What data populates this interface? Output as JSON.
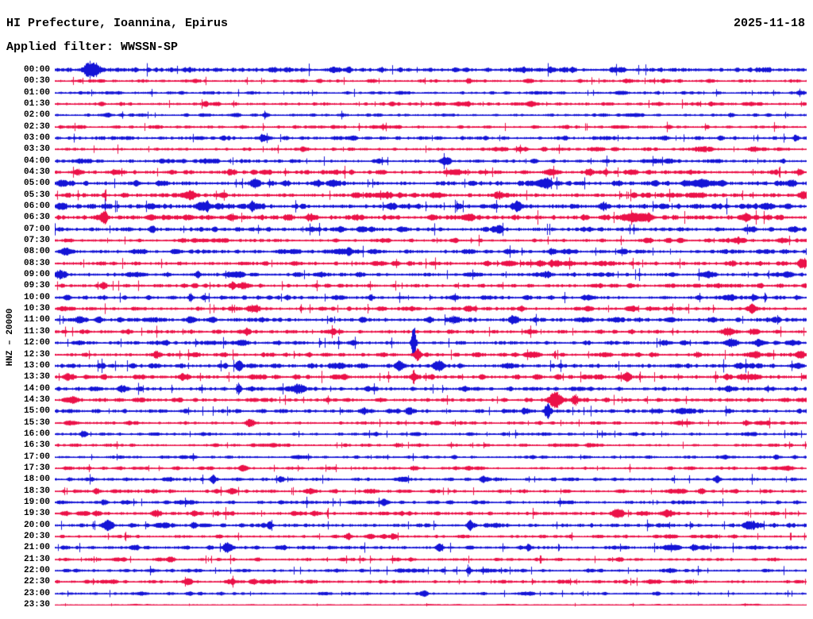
{
  "header": {
    "title": "HI Prefecture, Ioannina, Epirus",
    "date": "2025-11-18",
    "filter_line": "Applied filter: WWSSN-SP"
  },
  "y_axis_label": "HNZ – 20000",
  "colors": {
    "background": "#FFFFFF",
    "text": "#000000",
    "trace_even": "#1414D6",
    "trace_odd": "#EB1148"
  },
  "chart_data": {
    "type": "line",
    "variant": "helicorder-day-plot",
    "title": "HI Prefecture, Ioannina, Epirus",
    "date": "2025-11-18",
    "filter": "WWSSN-SP",
    "channel_scale_label": "HNZ – 20000",
    "minutes_per_row": 30,
    "x_range_minutes": [
      0,
      30
    ],
    "legend": "rows alternate blue (on the hour) and red (on the half hour)",
    "trace_colors_alternate": [
      "#1414D6",
      "#EB1148"
    ],
    "events_format": "[x_fraction_of_row, peak_amplitude_px, half_width_px]",
    "rows": [
      {
        "time": "00:00",
        "color": "blue",
        "noise_level": 1.7,
        "events": [
          [
            0.049,
            11,
            7
          ],
          [
            0.29,
            2.5,
            4
          ],
          [
            0.62,
            2,
            3
          ]
        ]
      },
      {
        "time": "00:30",
        "color": "red",
        "noise_level": 1.1,
        "events": [
          [
            0.55,
            2.5,
            3
          ],
          [
            0.87,
            2,
            3
          ]
        ]
      },
      {
        "time": "01:00",
        "color": "blue",
        "noise_level": 1.0,
        "events": [
          [
            0.75,
            1.5,
            6
          ]
        ]
      },
      {
        "time": "01:30",
        "color": "red",
        "noise_level": 1.2,
        "events": [
          [
            0.2,
            1.8,
            4
          ]
        ]
      },
      {
        "time": "02:00",
        "color": "blue",
        "noise_level": 1.0,
        "events": [
          [
            0.28,
            3.2,
            3
          ],
          [
            0.9,
            1.8,
            3
          ]
        ]
      },
      {
        "time": "02:30",
        "color": "red",
        "noise_level": 1.1,
        "events": [
          [
            0.25,
            1.8,
            3
          ],
          [
            0.68,
            1.8,
            3
          ]
        ]
      },
      {
        "time": "03:00",
        "color": "blue",
        "noise_level": 1.3,
        "events": [
          [
            0.275,
            3.2,
            3
          ],
          [
            0.81,
            2.8,
            4
          ],
          [
            0.985,
            2.8,
            3
          ]
        ]
      },
      {
        "time": "03:30",
        "color": "red",
        "noise_level": 1.2,
        "events": [
          [
            0.33,
            2.8,
            3
          ],
          [
            0.86,
            3.2,
            8
          ],
          [
            0.93,
            2.8,
            5
          ]
        ]
      },
      {
        "time": "04:00",
        "color": "blue",
        "noise_level": 1.3,
        "events": [
          [
            0.2,
            2.2,
            3
          ],
          [
            0.52,
            4.2,
            4
          ]
        ]
      },
      {
        "time": "04:30",
        "color": "red",
        "noise_level": 1.5,
        "events": [
          [
            0.03,
            3.2,
            4
          ],
          [
            0.08,
            3.2,
            4
          ],
          [
            0.235,
            2.8,
            3
          ],
          [
            0.66,
            3.8,
            6
          ],
          [
            0.71,
            3.2,
            4
          ],
          [
            0.99,
            3.8,
            3
          ]
        ]
      },
      {
        "time": "05:00",
        "color": "blue",
        "noise_level": 1.7,
        "events": [
          [
            0.01,
            3.8,
            5
          ],
          [
            0.265,
            4.2,
            4
          ],
          [
            0.35,
            3.2,
            3
          ],
          [
            0.655,
            3.8,
            4
          ],
          [
            0.98,
            3.8,
            4
          ]
        ]
      },
      {
        "time": "05:30",
        "color": "red",
        "noise_level": 1.6,
        "events": [
          [
            0.18,
            4.2,
            4
          ],
          [
            0.445,
            3.2,
            3
          ],
          [
            0.59,
            3.8,
            5
          ],
          [
            0.77,
            2.8,
            3
          ],
          [
            0.995,
            4.5,
            4
          ]
        ]
      },
      {
        "time": "06:00",
        "color": "blue",
        "noise_level": 1.9,
        "events": [
          [
            0.007,
            3.8,
            4
          ],
          [
            0.2,
            5,
            6
          ],
          [
            0.265,
            4.2,
            4
          ],
          [
            0.615,
            5,
            5
          ],
          [
            0.73,
            4.2,
            4
          ],
          [
            0.975,
            3.2,
            3
          ]
        ]
      },
      {
        "time": "06:30",
        "color": "red",
        "noise_level": 1.8,
        "events": [
          [
            0.065,
            5.5,
            3
          ],
          [
            0.235,
            3.8,
            4
          ],
          [
            0.34,
            4.2,
            4
          ],
          [
            0.76,
            4.6,
            7
          ],
          [
            0.79,
            4.2,
            4
          ],
          [
            0.92,
            3.8,
            4
          ]
        ]
      },
      {
        "time": "07:00",
        "color": "blue",
        "noise_level": 1.6,
        "events": [
          [
            0.13,
            2.8,
            3
          ],
          [
            0.59,
            4.2,
            4
          ],
          [
            0.985,
            2.8,
            3
          ]
        ]
      },
      {
        "time": "07:30",
        "color": "red",
        "noise_level": 1.3,
        "events": [
          [
            0.815,
            3.2,
            3
          ],
          [
            0.91,
            3.2,
            3
          ]
        ]
      },
      {
        "time": "08:00",
        "color": "blue",
        "noise_level": 1.4,
        "events": [
          [
            0.017,
            3.8,
            4
          ],
          [
            0.39,
            3.2,
            3
          ],
          [
            0.66,
            2.8,
            3
          ]
        ]
      },
      {
        "time": "08:30",
        "color": "red",
        "noise_level": 1.5,
        "events": [
          [
            0.665,
            3.8,
            5
          ],
          [
            0.9,
            2.8,
            3
          ],
          [
            0.995,
            5.5,
            5
          ]
        ]
      },
      {
        "time": "09:00",
        "color": "blue",
        "noise_level": 1.5,
        "events": [
          [
            0.007,
            4.6,
            5
          ],
          [
            0.19,
            2.8,
            3
          ],
          [
            0.655,
            3.2,
            4
          ]
        ]
      },
      {
        "time": "09:30",
        "color": "red",
        "noise_level": 1.4,
        "events": [
          [
            0.065,
            3.2,
            3
          ],
          [
            0.235,
            3.8,
            3
          ],
          [
            0.25,
            4.2,
            5
          ]
        ]
      },
      {
        "time": "10:00",
        "color": "blue",
        "noise_level": 1.4,
        "events": [
          [
            0.18,
            5.5,
            2
          ],
          [
            0.42,
            3.2,
            3
          ],
          [
            0.93,
            3.2,
            3
          ]
        ]
      },
      {
        "time": "10:30",
        "color": "red",
        "noise_level": 1.4,
        "events": [
          [
            0.265,
            5,
            5
          ],
          [
            0.62,
            2.8,
            3
          ],
          [
            0.925,
            3.8,
            4
          ]
        ]
      },
      {
        "time": "11:00",
        "color": "blue",
        "noise_level": 1.6,
        "events": [
          [
            0.033,
            3.8,
            4
          ],
          [
            0.18,
            4.2,
            4
          ],
          [
            0.53,
            4.2,
            5
          ],
          [
            0.61,
            3.8,
            4
          ],
          [
            0.875,
            3.2,
            3
          ]
        ]
      },
      {
        "time": "11:30",
        "color": "red",
        "noise_level": 1.4,
        "events": [
          [
            0.255,
            3.8,
            3
          ],
          [
            0.37,
            3.2,
            3
          ],
          [
            0.895,
            4.6,
            6
          ],
          [
            0.93,
            4.2,
            4
          ]
        ]
      },
      {
        "time": "12:00",
        "color": "blue",
        "noise_level": 1.4,
        "events": [
          [
            0.25,
            3.2,
            3
          ],
          [
            0.477,
            25,
            2
          ],
          [
            0.9,
            3.8,
            5
          ],
          [
            0.935,
            3.2,
            3
          ]
        ]
      },
      {
        "time": "12:30",
        "color": "red",
        "noise_level": 1.4,
        "events": [
          [
            0.135,
            3.8,
            4
          ],
          [
            0.482,
            8,
            3
          ],
          [
            0.855,
            3.2,
            3
          ],
          [
            0.93,
            3.8,
            6
          ],
          [
            0.99,
            3.8,
            4
          ]
        ]
      },
      {
        "time": "13:00",
        "color": "blue",
        "noise_level": 1.6,
        "events": [
          [
            0.245,
            6.5,
            3
          ],
          [
            0.38,
            3.8,
            4
          ],
          [
            0.46,
            4.6,
            4
          ],
          [
            0.51,
            5.5,
            4
          ],
          [
            0.91,
            3.8,
            4
          ]
        ]
      },
      {
        "time": "13:30",
        "color": "red",
        "noise_level": 1.6,
        "events": [
          [
            0.017,
            4.2,
            4
          ],
          [
            0.17,
            3.8,
            4
          ],
          [
            0.477,
            7.5,
            2
          ],
          [
            0.76,
            3.8,
            4
          ]
        ]
      },
      {
        "time": "14:00",
        "color": "blue",
        "noise_level": 1.4,
        "events": [
          [
            0.09,
            3.8,
            3
          ],
          [
            0.245,
            6.5,
            2
          ],
          [
            0.325,
            4.2,
            5
          ],
          [
            0.895,
            3.8,
            3
          ]
        ]
      },
      {
        "time": "14:30",
        "color": "red",
        "noise_level": 1.4,
        "events": [
          [
            0.025,
            4.2,
            4
          ],
          [
            0.665,
            10,
            6
          ],
          [
            0.69,
            4.6,
            3
          ]
        ]
      },
      {
        "time": "15:00",
        "color": "blue",
        "noise_level": 1.4,
        "events": [
          [
            0.41,
            3.8,
            3
          ],
          [
            0.47,
            3.8,
            3
          ],
          [
            0.625,
            3.8,
            3
          ],
          [
            0.655,
            8.5,
            3
          ]
        ]
      },
      {
        "time": "15:30",
        "color": "red",
        "noise_level": 1.2,
        "events": [
          [
            0.26,
            4.2,
            4
          ],
          [
            0.92,
            3.2,
            3
          ]
        ]
      },
      {
        "time": "16:00",
        "color": "blue",
        "noise_level": 1.1,
        "events": [
          [
            0.038,
            4.2,
            3
          ]
        ]
      },
      {
        "time": "16:30",
        "color": "red",
        "noise_level": 1.0,
        "events": [
          [
            0.455,
            2.2,
            3
          ],
          [
            0.71,
            2.8,
            3
          ]
        ]
      },
      {
        "time": "17:00",
        "color": "blue",
        "noise_level": 1.0,
        "events": [
          [
            0.96,
            2.2,
            3
          ]
        ]
      },
      {
        "time": "17:30",
        "color": "red",
        "noise_level": 1.0,
        "events": [
          [
            0.25,
            3.8,
            3
          ],
          [
            0.477,
            2.8,
            3
          ]
        ]
      },
      {
        "time": "18:00",
        "color": "blue",
        "noise_level": 1.2,
        "events": [
          [
            0.21,
            3.8,
            3
          ],
          [
            0.3,
            3.2,
            3
          ],
          [
            0.57,
            3.2,
            3
          ],
          [
            0.88,
            4.2,
            3
          ]
        ]
      },
      {
        "time": "18:30",
        "color": "red",
        "noise_level": 1.2,
        "events": [
          [
            0.055,
            3.8,
            3
          ],
          [
            0.235,
            3.8,
            4
          ],
          [
            0.34,
            3.2,
            3
          ],
          [
            0.86,
            3.2,
            3
          ]
        ]
      },
      {
        "time": "19:00",
        "color": "blue",
        "noise_level": 1.2,
        "events": [
          [
            0.065,
            3.2,
            3
          ],
          [
            0.44,
            2.8,
            3
          ]
        ]
      },
      {
        "time": "19:30",
        "color": "red",
        "noise_level": 1.4,
        "events": [
          [
            0.135,
            4.2,
            4
          ],
          [
            0.185,
            3.8,
            3
          ],
          [
            0.75,
            4.2,
            5
          ],
          [
            0.815,
            4.6,
            6
          ]
        ]
      },
      {
        "time": "20:00",
        "color": "blue",
        "noise_level": 1.4,
        "events": [
          [
            0.07,
            4.2,
            4
          ],
          [
            0.185,
            3.8,
            3
          ],
          [
            0.285,
            3.2,
            3
          ],
          [
            0.553,
            5.5,
            3
          ],
          [
            0.925,
            5,
            5
          ]
        ]
      },
      {
        "time": "20:30",
        "color": "red",
        "noise_level": 1.1,
        "events": [
          [
            0.39,
            3.8,
            3
          ],
          [
            0.45,
            3.8,
            3
          ]
        ]
      },
      {
        "time": "21:00",
        "color": "blue",
        "noise_level": 1.3,
        "events": [
          [
            0.228,
            4.6,
            4
          ],
          [
            0.51,
            3.2,
            3
          ],
          [
            0.63,
            3.2,
            3
          ],
          [
            0.85,
            3.2,
            3
          ]
        ]
      },
      {
        "time": "21:30",
        "color": "red",
        "noise_level": 1.1,
        "events": [
          [
            0.155,
            3.2,
            3
          ]
        ]
      },
      {
        "time": "22:00",
        "color": "blue",
        "noise_level": 1.1,
        "events": [
          [
            0.55,
            5,
            2
          ]
        ]
      },
      {
        "time": "22:30",
        "color": "red",
        "noise_level": 1.2,
        "events": [
          [
            0.175,
            3.2,
            4
          ],
          [
            0.235,
            3.2,
            4
          ],
          [
            0.265,
            2.8,
            3
          ]
        ]
      },
      {
        "time": "23:00",
        "color": "blue",
        "noise_level": 1.0,
        "events": [
          [
            0.49,
            2.8,
            3
          ],
          [
            0.8,
            2.2,
            3
          ]
        ]
      },
      {
        "time": "23:30",
        "color": "red",
        "noise_level": 0.45,
        "events": []
      }
    ]
  }
}
